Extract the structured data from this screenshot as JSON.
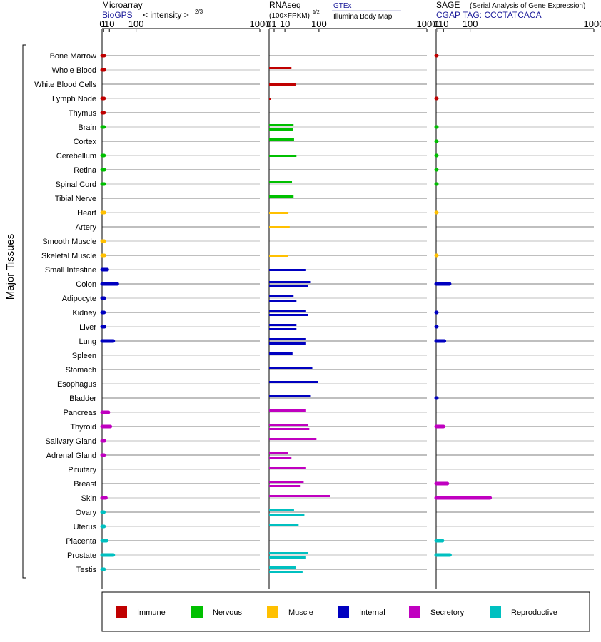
{
  "chart_data": {
    "type": "bar",
    "orientation": "horizontal",
    "scale": "power-2/3",
    "row_group_label": "Major Tissues",
    "tissues": [
      {
        "name": "Bone Marrow",
        "category": "Immune"
      },
      {
        "name": "Whole Blood",
        "category": "Immune"
      },
      {
        "name": "White Blood Cells",
        "category": "Immune"
      },
      {
        "name": "Lymph Node",
        "category": "Immune"
      },
      {
        "name": "Thymus",
        "category": "Immune"
      },
      {
        "name": "Brain",
        "category": "Nervous"
      },
      {
        "name": "Cortex",
        "category": "Nervous"
      },
      {
        "name": "Cerebellum",
        "category": "Nervous"
      },
      {
        "name": "Retina",
        "category": "Nervous"
      },
      {
        "name": "Spinal Cord",
        "category": "Nervous"
      },
      {
        "name": "Tibial Nerve",
        "category": "Nervous"
      },
      {
        "name": "Heart",
        "category": "Muscle"
      },
      {
        "name": "Artery",
        "category": "Muscle"
      },
      {
        "name": "Smooth Muscle",
        "category": "Muscle"
      },
      {
        "name": "Skeletal Muscle",
        "category": "Muscle"
      },
      {
        "name": "Small Intestine",
        "category": "Internal"
      },
      {
        "name": "Colon",
        "category": "Internal"
      },
      {
        "name": "Adipocyte",
        "category": "Internal"
      },
      {
        "name": "Kidney",
        "category": "Internal"
      },
      {
        "name": "Liver",
        "category": "Internal"
      },
      {
        "name": "Lung",
        "category": "Internal"
      },
      {
        "name": "Spleen",
        "category": "Internal"
      },
      {
        "name": "Stomach",
        "category": "Internal"
      },
      {
        "name": "Esophagus",
        "category": "Internal"
      },
      {
        "name": "Bladder",
        "category": "Internal"
      },
      {
        "name": "Pancreas",
        "category": "Secretory"
      },
      {
        "name": "Thyroid",
        "category": "Secretory"
      },
      {
        "name": "Salivary Gland",
        "category": "Secretory"
      },
      {
        "name": "Adrenal Gland",
        "category": "Secretory"
      },
      {
        "name": "Pituitary",
        "category": "Secretory"
      },
      {
        "name": "Breast",
        "category": "Secretory"
      },
      {
        "name": "Skin",
        "category": "Secretory"
      },
      {
        "name": "Ovary",
        "category": "Reproductive"
      },
      {
        "name": "Uterus",
        "category": "Reproductive"
      },
      {
        "name": "Placenta",
        "category": "Reproductive"
      },
      {
        "name": "Prostate",
        "category": "Reproductive"
      },
      {
        "name": "Testis",
        "category": "Reproductive"
      }
    ],
    "categories": [
      {
        "name": "Immune",
        "color": "#c00000"
      },
      {
        "name": "Nervous",
        "color": "#00c000"
      },
      {
        "name": "Muscle",
        "color": "#ffc000"
      },
      {
        "name": "Internal",
        "color": "#0000c0"
      },
      {
        "name": "Secretory",
        "color": "#c000c0"
      },
      {
        "name": "Reproductive",
        "color": "#00c0c0"
      }
    ],
    "axis_ticks": [
      0,
      1,
      10,
      100,
      1000
    ],
    "xlim": [
      0,
      1000
    ],
    "panels": [
      {
        "id": "microarray",
        "title": "Microarray",
        "source": "BioGPS",
        "scale_label": "< intensity >",
        "scale_exponent": "2/3",
        "values": [
          1.6,
          1.7,
          null,
          1.4,
          1.4,
          1.4,
          null,
          1.4,
          1.7,
          1.7,
          null,
          1.8,
          null,
          1.6,
          1.8,
          6,
          30,
          1.6,
          1.4,
          1.9,
          19,
          null,
          null,
          null,
          null,
          8,
          12,
          1.8,
          1.4,
          null,
          null,
          3.8,
          1.2,
          1.4,
          4.7,
          19,
          1.4
        ]
      },
      {
        "id": "rnaseq",
        "title": "RNAseq",
        "scale_label": "(100×FPKM)",
        "scale_exponent": "1/2",
        "series": [
          {
            "name": "GTEx",
            "values": [
              null,
              20,
              null,
              null,
              null,
              24,
              25,
              null,
              null,
              21,
              24,
              null,
              null,
              null,
              null,
              null,
              70,
              24,
              55,
              30,
              55,
              22,
              75,
              97,
              70,
              55,
              62,
              90,
              14,
              55,
              48,
              150,
              25,
              35,
              null,
              62,
              28
            ]
          },
          {
            "name": "Illumina Body Map",
            "values": [
              null,
              null,
              28,
              0.1,
              null,
              23,
              null,
              30,
              null,
              null,
              null,
              15,
              17,
              null,
              14,
              55,
              60,
              30,
              60,
              30,
              55,
              null,
              null,
              null,
              null,
              null,
              65,
              null,
              20,
              null,
              40,
              null,
              50,
              null,
              null,
              55,
              45
            ]
          }
        ]
      },
      {
        "id": "sage",
        "title": "SAGE",
        "subtitle": "(Serial Analysis of Gene Expression)",
        "source": "CGAP TAG: CCCTATCACA",
        "values": [
          0.1,
          null,
          null,
          0.1,
          null,
          0.05,
          0.05,
          0.05,
          0.05,
          0.05,
          null,
          0.02,
          null,
          null,
          0.02,
          null,
          25,
          null,
          0.1,
          0.1,
          12,
          null,
          null,
          null,
          0.1,
          null,
          10,
          null,
          null,
          null,
          19,
          200,
          null,
          null,
          8,
          26,
          null
        ]
      }
    ]
  }
}
